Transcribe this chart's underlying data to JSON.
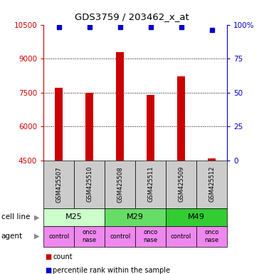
{
  "title": "GDS3759 / 203462_x_at",
  "samples": [
    "GSM425507",
    "GSM425510",
    "GSM425508",
    "GSM425511",
    "GSM425509",
    "GSM425512"
  ],
  "counts": [
    7700,
    7500,
    9300,
    7400,
    8200,
    4580
  ],
  "percentile_ranks": [
    98,
    98,
    98,
    98,
    98,
    96
  ],
  "ylim_left": [
    4500,
    10500
  ],
  "yticks_left": [
    4500,
    6000,
    7500,
    9000,
    10500
  ],
  "ylim_right": [
    0,
    100
  ],
  "yticks_right": [
    0,
    25,
    50,
    75,
    100
  ],
  "bar_color": "#cc0000",
  "dot_color": "#0000cc",
  "bar_baseline": 4500,
  "cell_line_groups": [
    {
      "label": "M25",
      "start": 0,
      "end": 2,
      "color": "#ccffcc"
    },
    {
      "label": "M29",
      "start": 2,
      "end": 4,
      "color": "#66dd66"
    },
    {
      "label": "M49",
      "start": 4,
      "end": 6,
      "color": "#33cc33"
    }
  ],
  "agents": [
    "control",
    "onconase",
    "control",
    "onconase",
    "control",
    "onconase"
  ],
  "agent_color": "#ee88ee",
  "gsm_box_color": "#cccccc",
  "legend_count_color": "#cc0000",
  "legend_percentile_color": "#0000cc",
  "bar_width": 0.25
}
